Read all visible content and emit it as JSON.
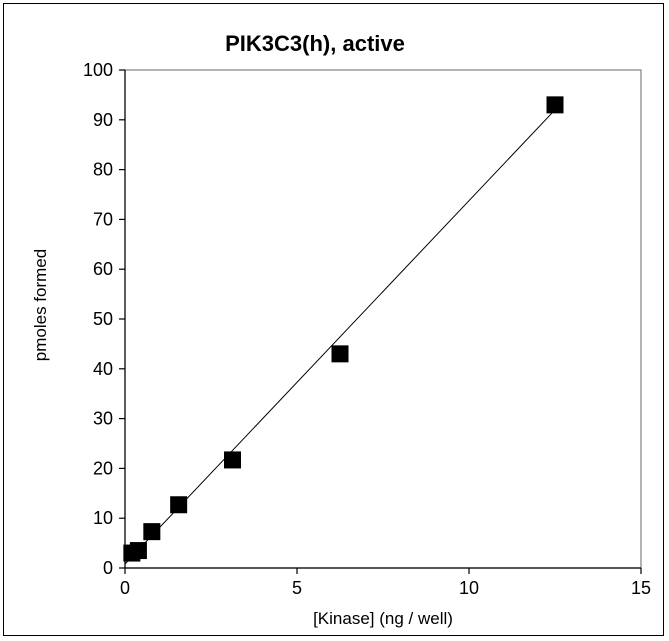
{
  "chart_data": {
    "type": "scatter",
    "title": "PIK3C3(h), active",
    "xlabel": "[Kinase] (ng / well)",
    "ylabel": "pmoles formed",
    "xlim": [
      0,
      15
    ],
    "ylim": [
      0,
      100
    ],
    "xticks": [
      0,
      5,
      10,
      15
    ],
    "yticks": [
      0,
      10,
      20,
      30,
      40,
      50,
      60,
      70,
      80,
      90,
      100
    ],
    "grid": false,
    "legend": "none",
    "series": [
      {
        "x": [
          0.2,
          0.39,
          0.78,
          1.56,
          3.125,
          6.25,
          12.5
        ],
        "y": [
          3.0,
          3.5,
          7.3,
          12.7,
          21.7,
          43.0,
          93.0
        ],
        "marker": "square",
        "color": "#000000"
      }
    ],
    "trendline": {
      "type": "linear",
      "x": [
        0,
        12.5
      ],
      "y": [
        0.8,
        92.0
      ],
      "color": "#000000"
    }
  }
}
